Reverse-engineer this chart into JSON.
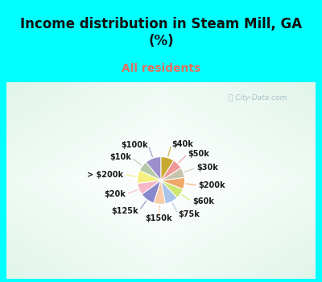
{
  "title": "Income distribution in Steam Mill, GA\n(%)",
  "subtitle": "All residents",
  "labels": [
    "$100k",
    "$10k",
    "> $200k",
    "$20k",
    "$125k",
    "$150k",
    "$75k",
    "$60k",
    "$200k",
    "$30k",
    "$50k",
    "$40k"
  ],
  "values": [
    11,
    7,
    9,
    8,
    10,
    8,
    9,
    7,
    8,
    7,
    7,
    9
  ],
  "colors": [
    "#9b8fcc",
    "#b5c9a8",
    "#f5f080",
    "#f4b8c8",
    "#8888cc",
    "#f8cca8",
    "#a8c4e8",
    "#cce870",
    "#f0a868",
    "#c8c4ac",
    "#f09898",
    "#c8a830"
  ],
  "bg_cyan": "#00ffff",
  "bg_chart_color": "#e8f5ef",
  "subtitle_color": "#e07060",
  "watermark_color": "#a0b8c0",
  "startangle": 90,
  "title_fontsize": 12,
  "subtitle_fontsize": 10,
  "label_fontsize": 7
}
